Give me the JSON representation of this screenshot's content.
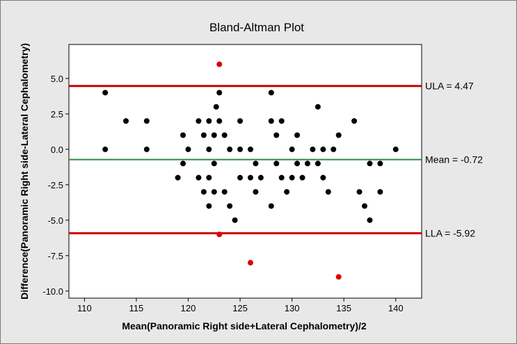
{
  "chart_data": {
    "type": "scatter",
    "title": "Bland-Altman Plot",
    "xlabel": "Mean(Panoramic Right side+Lateral Cephalometry)/2",
    "ylabel": "Difference(Panoramic Right side-Lateral Cephalometry)",
    "xlim": [
      108.5,
      142.5
    ],
    "ylim": [
      -10.5,
      7.4
    ],
    "x_ticks": [
      110,
      115,
      120,
      125,
      130,
      135,
      140
    ],
    "y_ticks": [
      5.0,
      2.5,
      0.0,
      -2.5,
      -5.0,
      -7.5,
      -10.0
    ],
    "x_tick_labels": [
      "110",
      "115",
      "120",
      "125",
      "130",
      "135",
      "140"
    ],
    "y_tick_labels": [
      "5.0",
      "2.5",
      "0.0",
      "-2.5",
      "-5.0",
      "-7.5",
      "-10.0"
    ],
    "grid": false,
    "reference_lines": [
      {
        "label": "ULA = 4.47",
        "y": 4.47,
        "color": "#cc0000"
      },
      {
        "label": "Mean = -0.72",
        "y": -0.72,
        "color": "#2e8b3a"
      },
      {
        "label": "LLA = -5.92",
        "y": -5.92,
        "color": "#cc0000"
      }
    ],
    "series": [
      {
        "color": "#000000",
        "points": [
          [
            112,
            4
          ],
          [
            112,
            0
          ],
          [
            114,
            2
          ],
          [
            116,
            2
          ],
          [
            116,
            0
          ],
          [
            119,
            -2
          ],
          [
            119.5,
            1
          ],
          [
            119.5,
            -1
          ],
          [
            120,
            0
          ],
          [
            121,
            2
          ],
          [
            121,
            -2
          ],
          [
            121.5,
            1
          ],
          [
            121.5,
            -3
          ],
          [
            122,
            2
          ],
          [
            122,
            0
          ],
          [
            122,
            -2
          ],
          [
            122,
            -4
          ],
          [
            122.5,
            1
          ],
          [
            122.5,
            -1
          ],
          [
            122.5,
            -3
          ],
          [
            122.7,
            3
          ],
          [
            123,
            4
          ],
          [
            123,
            2
          ],
          [
            123.5,
            1
          ],
          [
            123.5,
            -3
          ],
          [
            124,
            0
          ],
          [
            124,
            -4
          ],
          [
            124.5,
            -5
          ],
          [
            125,
            2
          ],
          [
            125,
            0
          ],
          [
            125,
            -2
          ],
          [
            126,
            0
          ],
          [
            126,
            -2
          ],
          [
            126.5,
            -1
          ],
          [
            126.5,
            -3
          ],
          [
            127,
            -2
          ],
          [
            128,
            4
          ],
          [
            128,
            2
          ],
          [
            128,
            -4
          ],
          [
            128.5,
            1
          ],
          [
            128.5,
            -1
          ],
          [
            129,
            2
          ],
          [
            129,
            -2
          ],
          [
            129.5,
            -3
          ],
          [
            130,
            0
          ],
          [
            130,
            -2
          ],
          [
            130.5,
            1
          ],
          [
            130.5,
            -1
          ],
          [
            131,
            -2
          ],
          [
            131.5,
            -1
          ],
          [
            132,
            0
          ],
          [
            132.5,
            3
          ],
          [
            132.5,
            -1
          ],
          [
            133,
            0
          ],
          [
            133,
            -2
          ],
          [
            133.5,
            -3
          ],
          [
            134,
            0
          ],
          [
            134.5,
            1
          ],
          [
            136,
            2
          ],
          [
            136.5,
            -3
          ],
          [
            137,
            -4
          ],
          [
            137.5,
            -5
          ],
          [
            137.5,
            -1
          ],
          [
            138.5,
            -1
          ],
          [
            138.5,
            -3
          ],
          [
            140,
            0
          ]
        ]
      },
      {
        "color": "#dd0000",
        "points": [
          [
            123,
            6
          ],
          [
            123,
            -6
          ],
          [
            126,
            -8
          ],
          [
            134.5,
            -9
          ]
        ]
      }
    ]
  }
}
